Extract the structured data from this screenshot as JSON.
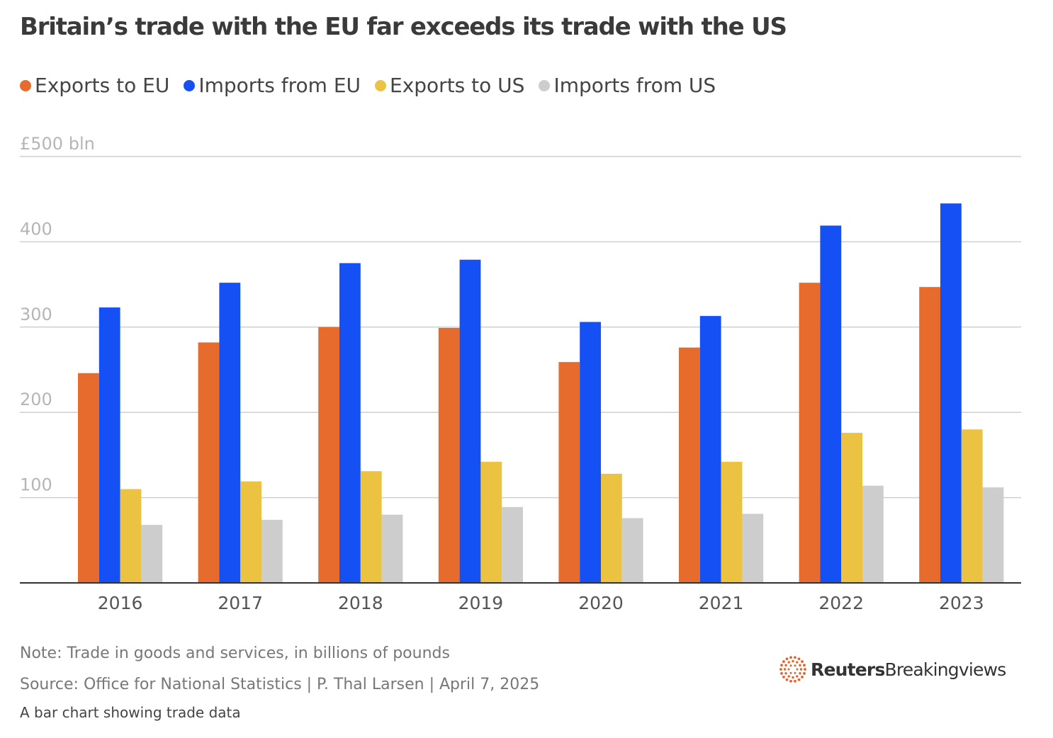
{
  "title": "Britain’s trade with the EU far exceeds its trade with the US",
  "footer": {
    "note": "Note: Trade in goods and services, in billions of pounds",
    "source": "Source: Office for National Statistics | P. Thal Larsen | April 7, 2025",
    "description": "A bar chart showing trade data"
  },
  "brand": {
    "name": "Reuters",
    "product": "Breakingviews",
    "logo_icon": "reuters-dot-ring-logo",
    "logo_color": "#e5622a"
  },
  "chart_data": {
    "type": "bar",
    "title": "Britain’s trade with the EU far exceeds its trade with the US",
    "categories": [
      "2016",
      "2017",
      "2018",
      "2019",
      "2020",
      "2021",
      "2022",
      "2023"
    ],
    "series": [
      {
        "name": "Exports to EU",
        "color": "#e86b2e",
        "values": [
          246,
          282,
          300,
          299,
          259,
          276,
          352,
          347
        ]
      },
      {
        "name": "Imports from EU",
        "color": "#1550f5",
        "values": [
          323,
          352,
          375,
          379,
          306,
          313,
          419,
          445
        ]
      },
      {
        "name": "Exports to US",
        "color": "#ecc242",
        "values": [
          110,
          119,
          131,
          142,
          128,
          142,
          176,
          180
        ]
      },
      {
        "name": "Imports from US",
        "color": "#cdcdcd",
        "values": [
          68,
          74,
          80,
          89,
          76,
          81,
          114,
          112
        ]
      }
    ],
    "ylim": [
      0,
      500
    ],
    "yticks": [
      {
        "value": 100,
        "label": "100"
      },
      {
        "value": 200,
        "label": "200"
      },
      {
        "value": 300,
        "label": "300"
      },
      {
        "value": 400,
        "label": "400"
      },
      {
        "value": 500,
        "label": "£500 bln"
      }
    ],
    "xlabel": "",
    "ylabel": "",
    "grid": true,
    "legend_position": "top-left"
  }
}
